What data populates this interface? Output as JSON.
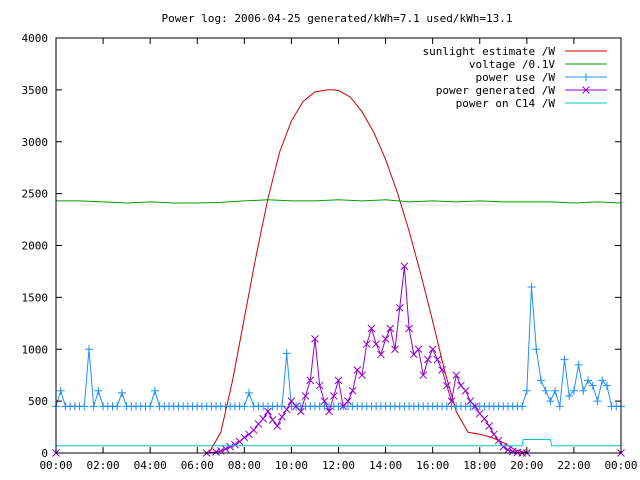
{
  "chart_data": {
    "type": "line",
    "title": "Power log: 2006-04-25 generated/kWh=7.1 used/kWh=13.1",
    "xlabel": "",
    "ylabel": "",
    "xlim": [
      0,
      24
    ],
    "ylim": [
      0,
      4000
    ],
    "x_ticks": [
      {
        "value": 0,
        "label": "00:00"
      },
      {
        "value": 2,
        "label": "02:00"
      },
      {
        "value": 4,
        "label": "04:00"
      },
      {
        "value": 6,
        "label": "06:00"
      },
      {
        "value": 8,
        "label": "08:00"
      },
      {
        "value": 10,
        "label": "10:00"
      },
      {
        "value": 12,
        "label": "12:00"
      },
      {
        "value": 14,
        "label": "14:00"
      },
      {
        "value": 16,
        "label": "16:00"
      },
      {
        "value": 18,
        "label": "18:00"
      },
      {
        "value": 20,
        "label": "20:00"
      },
      {
        "value": 22,
        "label": "22:00"
      },
      {
        "value": 24,
        "label": "00:00"
      }
    ],
    "y_ticks": [
      {
        "value": 0,
        "label": "0"
      },
      {
        "value": 500,
        "label": "500"
      },
      {
        "value": 1000,
        "label": "1000"
      },
      {
        "value": 1500,
        "label": "1500"
      },
      {
        "value": 2000,
        "label": "2000"
      },
      {
        "value": 2500,
        "label": "2500"
      },
      {
        "value": 3000,
        "label": "3000"
      },
      {
        "value": 3500,
        "label": "3500"
      },
      {
        "value": 4000,
        "label": "4000"
      }
    ],
    "grid": false,
    "legend_position": "top-right",
    "series": [
      {
        "name": "sunlight estimate /W",
        "color": "#cc0000",
        "marker": "none",
        "x": [
          0,
          6.5,
          7,
          7.5,
          8,
          8.5,
          9,
          9.5,
          10,
          10.5,
          11,
          11.5,
          11.75,
          12,
          12.5,
          13,
          13.5,
          14,
          14.5,
          15,
          15.5,
          16,
          16.5,
          17,
          17.5,
          18,
          18.5,
          19,
          19.5,
          20,
          24
        ],
        "y": [
          0,
          0,
          200,
          700,
          1300,
          1900,
          2450,
          2900,
          3200,
          3390,
          3480,
          3500,
          3500,
          3495,
          3430,
          3290,
          3090,
          2830,
          2510,
          2140,
          1720,
          1270,
          800,
          400,
          200,
          180,
          150,
          100,
          30,
          0,
          0
        ]
      },
      {
        "name": "voltage /0.1V",
        "color": "#00a000",
        "marker": "none",
        "x": [
          0,
          1,
          2,
          3,
          4,
          5,
          6,
          7,
          8,
          9,
          10,
          11,
          12,
          13,
          14,
          15,
          16,
          17,
          18,
          19,
          20,
          21,
          22,
          23,
          24
        ],
        "y": [
          2430,
          2430,
          2420,
          2410,
          2420,
          2410,
          2410,
          2415,
          2430,
          2440,
          2430,
          2430,
          2440,
          2430,
          2440,
          2420,
          2430,
          2420,
          2430,
          2420,
          2420,
          2420,
          2410,
          2420,
          2410
        ]
      },
      {
        "name": "power use /W",
        "color": "#1e90ff",
        "marker": "plus",
        "x": [
          0,
          0.2,
          0.4,
          0.6,
          0.8,
          1.0,
          1.2,
          1.4,
          1.6,
          1.8,
          2.0,
          2.2,
          2.4,
          2.6,
          2.8,
          3.0,
          3.2,
          3.4,
          3.6,
          3.8,
          4.0,
          4.2,
          4.4,
          4.6,
          4.8,
          5.0,
          5.2,
          5.4,
          5.6,
          5.8,
          6.0,
          6.2,
          6.4,
          6.6,
          6.8,
          7.0,
          7.2,
          7.4,
          7.6,
          7.8,
          8.0,
          8.2,
          8.4,
          8.6,
          8.8,
          9.0,
          9.2,
          9.4,
          9.6,
          9.8,
          10.0,
          10.2,
          10.4,
          10.6,
          10.8,
          11.0,
          11.2,
          11.4,
          11.6,
          11.8,
          12.0,
          12.2,
          12.4,
          12.6,
          12.8,
          13.0,
          13.2,
          13.4,
          13.6,
          13.8,
          14.0,
          14.2,
          14.4,
          14.6,
          14.8,
          15.0,
          15.2,
          15.4,
          15.6,
          15.8,
          16.0,
          16.2,
          16.4,
          16.6,
          16.8,
          17.0,
          17.2,
          17.4,
          17.6,
          17.8,
          18.0,
          18.2,
          18.4,
          18.6,
          18.8,
          19.0,
          19.2,
          19.4,
          19.6,
          19.8,
          20.0,
          20.2,
          20.4,
          20.6,
          20.8,
          21.0,
          21.2,
          21.4,
          21.6,
          21.8,
          22.0,
          22.2,
          22.4,
          22.6,
          22.8,
          23.0,
          23.2,
          23.4,
          23.6,
          23.8,
          24.0
        ],
        "y": [
          450,
          600,
          450,
          450,
          450,
          450,
          450,
          1000,
          450,
          600,
          450,
          450,
          450,
          450,
          580,
          450,
          450,
          450,
          450,
          450,
          450,
          600,
          450,
          450,
          450,
          450,
          450,
          450,
          450,
          450,
          450,
          450,
          450,
          450,
          450,
          450,
          450,
          450,
          450,
          450,
          450,
          580,
          450,
          450,
          450,
          450,
          450,
          450,
          450,
          960,
          450,
          450,
          450,
          450,
          450,
          450,
          450,
          450,
          450,
          450,
          450,
          450,
          450,
          450,
          450,
          450,
          450,
          450,
          450,
          450,
          450,
          450,
          450,
          450,
          450,
          450,
          450,
          450,
          450,
          450,
          450,
          450,
          450,
          450,
          450,
          450,
          450,
          450,
          450,
          450,
          450,
          450,
          450,
          450,
          450,
          450,
          450,
          450,
          450,
          450,
          600,
          1600,
          1000,
          700,
          600,
          500,
          600,
          450,
          900,
          550,
          600,
          850,
          600,
          700,
          650,
          500,
          700,
          650,
          450,
          450,
          450
        ]
      },
      {
        "name": "power generated /W",
        "color": "#9400d3",
        "marker": "cross",
        "x": [
          0,
          6.4,
          6.8,
          7.0,
          7.2,
          7.4,
          7.6,
          7.8,
          8.0,
          8.2,
          8.4,
          8.6,
          8.8,
          9.0,
          9.2,
          9.4,
          9.6,
          9.8,
          10.0,
          10.2,
          10.4,
          10.6,
          10.8,
          11.0,
          11.2,
          11.4,
          11.6,
          11.8,
          12.0,
          12.2,
          12.4,
          12.6,
          12.8,
          13.0,
          13.2,
          13.4,
          13.6,
          13.8,
          14.0,
          14.2,
          14.4,
          14.6,
          14.8,
          15.0,
          15.2,
          15.4,
          15.6,
          15.8,
          16.0,
          16.2,
          16.4,
          16.6,
          16.8,
          17.0,
          17.2,
          17.4,
          17.6,
          17.8,
          18.0,
          18.2,
          18.4,
          18.6,
          18.8,
          19.0,
          19.2,
          19.4,
          19.6,
          19.8,
          20.0,
          24.0
        ],
        "y": [
          0,
          0,
          10,
          20,
          40,
          60,
          80,
          110,
          150,
          180,
          220,
          280,
          330,
          400,
          320,
          260,
          350,
          420,
          500,
          450,
          400,
          550,
          700,
          1100,
          650,
          500,
          400,
          550,
          700,
          450,
          500,
          600,
          800,
          750,
          1050,
          1200,
          1050,
          950,
          1100,
          1200,
          1000,
          1400,
          1800,
          1200,
          950,
          1000,
          750,
          900,
          1000,
          900,
          800,
          650,
          500,
          750,
          650,
          600,
          500,
          450,
          380,
          330,
          260,
          180,
          120,
          60,
          30,
          15,
          5,
          0,
          0,
          0
        ]
      },
      {
        "name": "power on C14 /W",
        "color": "#00c8c8",
        "marker": "none",
        "x": [
          0,
          19.8,
          19.85,
          21.0,
          21.05,
          24
        ],
        "y": [
          70,
          70,
          130,
          130,
          70,
          70
        ]
      }
    ]
  }
}
